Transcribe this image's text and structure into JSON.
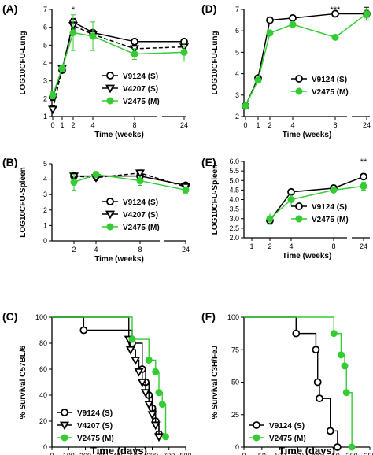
{
  "colors": {
    "green": "#33cc33",
    "black": "#000000"
  },
  "chart_data": [
    {
      "id": "A",
      "type": "line",
      "panel_label": "(A)",
      "xlabel": "Time (weeks)",
      "ylabel": "LOG10CFU-Lung",
      "x_ticks": [
        "0",
        "1",
        "2",
        "4",
        "8",
        "24"
      ],
      "y_ticks": [
        "1",
        "2",
        "3",
        "4",
        "5",
        "6",
        "7"
      ],
      "ylim": [
        1,
        7
      ],
      "axis_break_x": true,
      "annotations": [
        {
          "x": "2",
          "text": "*"
        }
      ],
      "legend_position": "right",
      "series": [
        {
          "name": "V9124 (S)",
          "marker": "open-circle",
          "color": "#000000",
          "x": [
            "0",
            "1",
            "2",
            "4",
            "8",
            "24"
          ],
          "y": [
            2.1,
            3.6,
            6.3,
            5.7,
            5.2,
            5.2
          ],
          "err": [
            0.2,
            0.1,
            0.2,
            0.1,
            0.15,
            0.15
          ]
        },
        {
          "name": "V4207 (S)",
          "marker": "open-triangle-down",
          "color": "#000000",
          "x": [
            "0",
            "1",
            "2",
            "4",
            "8",
            "24"
          ],
          "y": [
            1.4,
            3.7,
            6.1,
            5.6,
            4.8,
            4.9
          ],
          "err": [
            0.2,
            0.1,
            0.2,
            0.2,
            0.2,
            0.2
          ]
        },
        {
          "name": "V2475 (M)",
          "marker": "filled-circle",
          "color": "#33cc33",
          "x": [
            "0",
            "1",
            "2",
            "4",
            "8",
            "24"
          ],
          "y": [
            2.2,
            3.7,
            5.7,
            5.5,
            4.5,
            4.6
          ],
          "err": [
            0.2,
            0.1,
            1.0,
            0.8,
            0.3,
            0.5
          ]
        }
      ]
    },
    {
      "id": "B",
      "type": "line",
      "panel_label": "(B)",
      "xlabel": "Time (weeks)",
      "ylabel": "LOG10CFU-Spleen",
      "x_ticks": [
        "2",
        "4",
        "8",
        "24"
      ],
      "y_ticks": [
        "0",
        "1",
        "2",
        "3",
        "4",
        "5"
      ],
      "ylim": [
        0,
        5
      ],
      "axis_break_x": true,
      "legend_position": "bottom-center",
      "series": [
        {
          "name": "V9124 (S)",
          "marker": "open-circle",
          "color": "#000000",
          "x": [
            "2",
            "4",
            "8",
            "24"
          ],
          "y": [
            4.2,
            4.2,
            4.2,
            3.6
          ],
          "err": [
            0.2,
            0.2,
            0.2,
            0.1
          ]
        },
        {
          "name": "V4207 (S)",
          "marker": "open-triangle-down",
          "color": "#000000",
          "x": [
            "2",
            "4",
            "8",
            "24"
          ],
          "y": [
            4.2,
            4.1,
            4.4,
            3.5
          ],
          "err": [
            0.2,
            0.2,
            0.2,
            0.1
          ]
        },
        {
          "name": "V2475 (M)",
          "marker": "filled-circle",
          "color": "#33cc33",
          "x": [
            "2",
            "4",
            "8",
            "24"
          ],
          "y": [
            3.8,
            4.3,
            3.9,
            3.3
          ],
          "err": [
            0.5,
            0.2,
            0.3,
            0.2
          ]
        }
      ]
    },
    {
      "id": "C",
      "type": "line",
      "panel_label": "(C)",
      "step": true,
      "xlabel": "Time (days)",
      "ylabel": "% Survival C57BL/6",
      "x_ticks": [
        "0",
        "100",
        "200",
        "300",
        "400",
        "500",
        "600",
        "700",
        "800"
      ],
      "y_ticks": [
        "0",
        "20",
        "40",
        "60",
        "80",
        "100"
      ],
      "xlim": [
        0,
        800
      ],
      "ylim": [
        0,
        100
      ],
      "legend_position": "bottom-left",
      "series": [
        {
          "name": "V9124 (S)",
          "marker": "open-circle",
          "color": "#000000",
          "x": [
            0,
            190,
            480,
            540,
            560,
            580,
            600,
            620,
            640
          ],
          "y": [
            100,
            90,
            80,
            60,
            50,
            40,
            30,
            20,
            10
          ]
        },
        {
          "name": "V4207 (S)",
          "marker": "open-triangle-down",
          "color": "#000000",
          "x": [
            0,
            460,
            470,
            500,
            520,
            540,
            560,
            580,
            600,
            620,
            640
          ],
          "y": [
            100,
            83,
            75,
            67,
            58,
            50,
            42,
            33,
            25,
            17,
            8
          ]
        },
        {
          "name": "V2475 (M)",
          "marker": "filled-circle",
          "color": "#33cc33",
          "x": [
            0,
            480,
            580,
            620,
            640,
            660,
            680
          ],
          "y": [
            100,
            83,
            67,
            58,
            42,
            33,
            8
          ]
        }
      ]
    },
    {
      "id": "D",
      "type": "line",
      "panel_label": "(D)",
      "xlabel": "Time (weeks)",
      "ylabel": "LOG10CFU-Lung",
      "x_ticks": [
        "0",
        "1",
        "2",
        "4",
        "8",
        "24"
      ],
      "y_ticks": [
        "2",
        "3",
        "4",
        "5",
        "6",
        "7"
      ],
      "ylim": [
        2,
        7
      ],
      "axis_break_x": true,
      "annotations": [
        {
          "x": "8",
          "text": "***"
        }
      ],
      "legend_position": "right",
      "series": [
        {
          "name": "V9124 (S)",
          "marker": "open-circle",
          "color": "#000000",
          "x": [
            "0",
            "1",
            "2",
            "4",
            "8",
            "24"
          ],
          "y": [
            2.5,
            3.8,
            6.5,
            6.6,
            6.8,
            6.8
          ],
          "err": [
            0.1,
            0.1,
            0.1,
            0.1,
            0.1,
            0.3
          ]
        },
        {
          "name": "V2475 (M)",
          "marker": "filled-circle",
          "color": "#33cc33",
          "x": [
            "0",
            "1",
            "2",
            "4",
            "8",
            "24"
          ],
          "y": [
            2.5,
            3.7,
            5.9,
            6.3,
            5.7,
            6.8
          ],
          "err": [
            0.1,
            0.1,
            0.1,
            0.1,
            0.1,
            0.2
          ]
        }
      ]
    },
    {
      "id": "E",
      "type": "line",
      "panel_label": "(E)",
      "xlabel": "Time (weeks)",
      "ylabel": "LOG10CFU-Spleen",
      "x_ticks": [
        "1",
        "2",
        "4",
        "8",
        "24"
      ],
      "y_ticks": [
        "2.0",
        "2.5",
        "3.0",
        "3.5",
        "4.0",
        "4.5",
        "5.0",
        "5.5",
        "6.0"
      ],
      "ylim": [
        2,
        6
      ],
      "axis_break_x": true,
      "annotations": [
        {
          "x": "24",
          "text": "**"
        }
      ],
      "legend_position": "bottom-center",
      "series": [
        {
          "name": "V9124 (S)",
          "marker": "open-circle",
          "color": "#000000",
          "x": [
            "2",
            "4",
            "8",
            "24"
          ],
          "y": [
            2.9,
            4.4,
            4.6,
            5.2
          ],
          "err": [
            0.1,
            0.1,
            0.1,
            0.15
          ]
        },
        {
          "name": "V2475 (M)",
          "marker": "filled-circle",
          "color": "#33cc33",
          "x": [
            "2",
            "4",
            "8",
            "24"
          ],
          "y": [
            3.0,
            4.0,
            4.5,
            4.7
          ],
          "err": [
            0.3,
            0.3,
            0.1,
            0.2
          ]
        }
      ]
    },
    {
      "id": "F",
      "type": "line",
      "panel_label": "(F)",
      "step": true,
      "xlabel": "Time (days)",
      "ylabel": "% Survival C3H/FeJ",
      "x_ticks": [
        "0",
        "50",
        "100",
        "150",
        "200",
        "250",
        "300",
        "350"
      ],
      "y_ticks": [
        "0",
        "25",
        "50",
        "75",
        "100"
      ],
      "xlim": [
        0,
        350
      ],
      "ylim": [
        0,
        100
      ],
      "legend_position": "bottom-left",
      "series": [
        {
          "name": "V9124 (S)",
          "marker": "open-circle",
          "color": "#000000",
          "x": [
            0,
            145,
            200,
            205,
            210,
            240,
            260
          ],
          "y": [
            100,
            87.5,
            75,
            50,
            37.5,
            12.5,
            0
          ]
        },
        {
          "name": "V2475 (M)",
          "marker": "filled-circle",
          "color": "#33cc33",
          "x": [
            0,
            250,
            270,
            280,
            285,
            300
          ],
          "y": [
            100,
            87.5,
            71,
            62.5,
            42,
            0
          ]
        }
      ]
    }
  ]
}
